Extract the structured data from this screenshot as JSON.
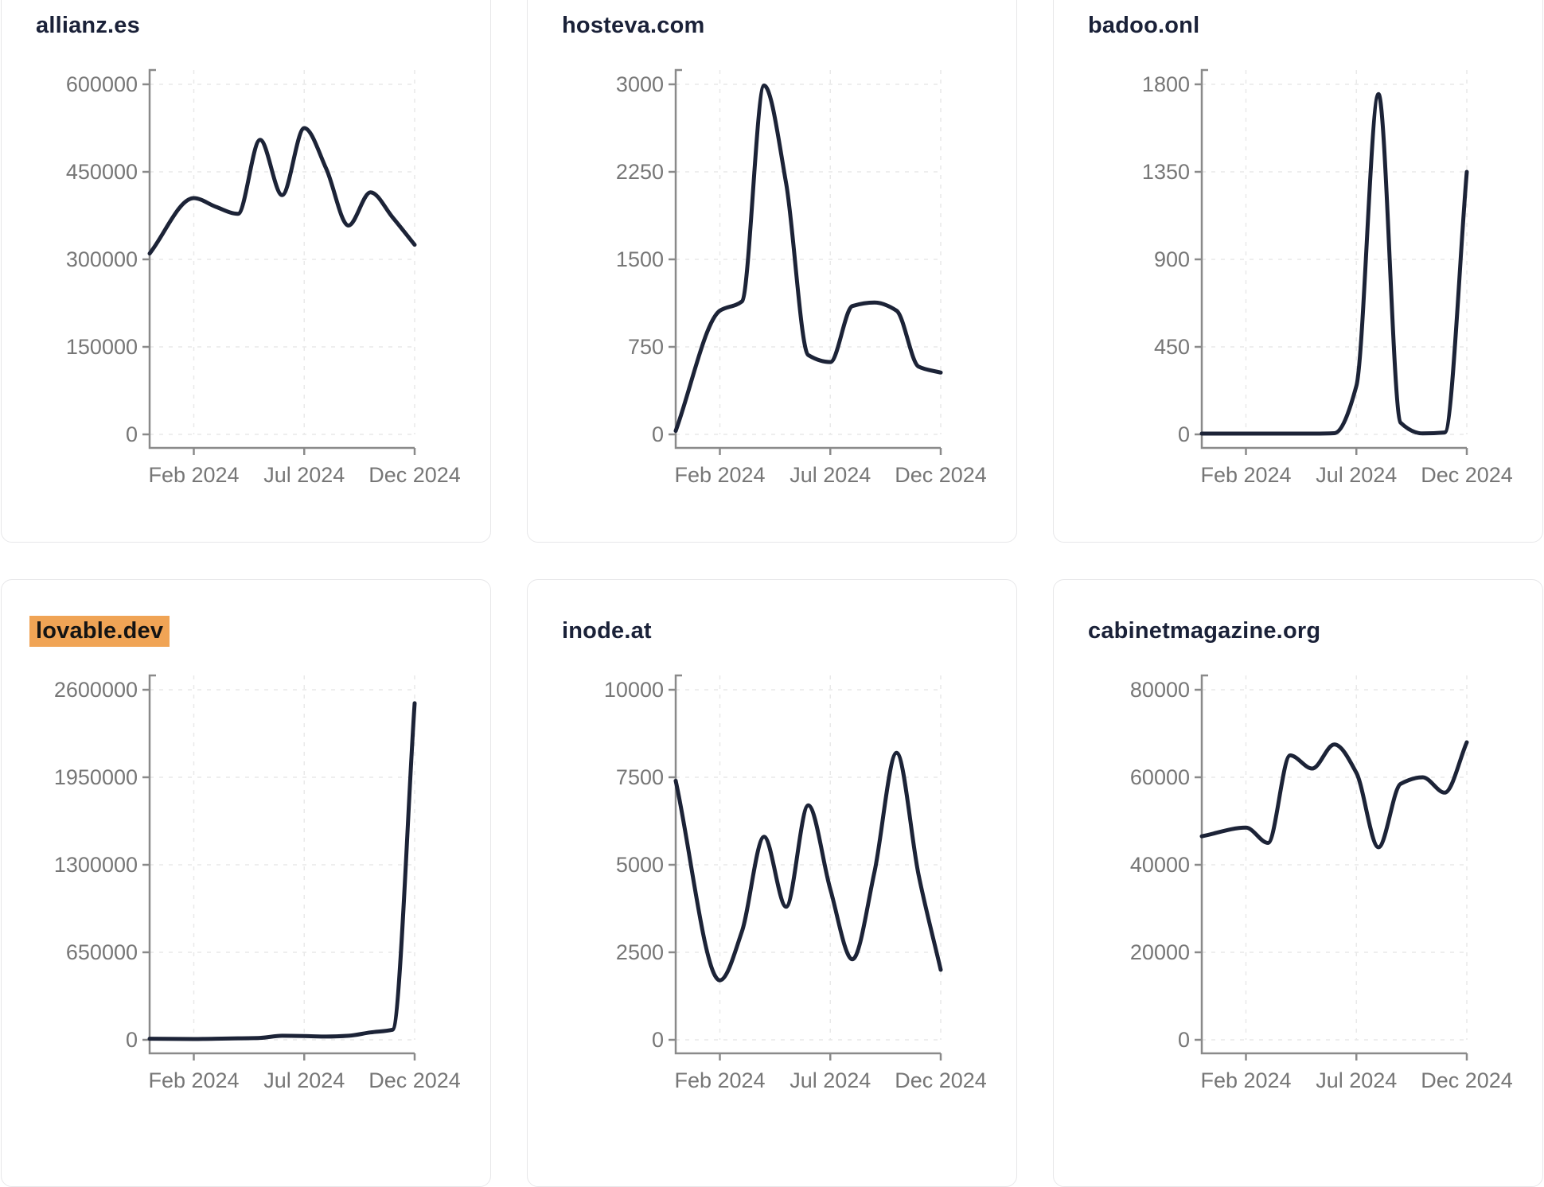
{
  "theme": {
    "background": "#ffffff",
    "card_background": "#ffffff",
    "card_border_color": "#e7e7e9",
    "line_color": "#1c2337",
    "title_color": "#1a2138",
    "tick_label_color": "#767676",
    "axis_color": "#8a8a8a",
    "gridline_color": "#e9e9e9",
    "highlight_color": "#f0a455",
    "highlight_text_color": "#141414"
  },
  "x_axis": {
    "months": [
      "2024-01",
      "2024-02",
      "2024-03",
      "2024-04",
      "2024-05",
      "2024-06",
      "2024-07",
      "2024-08",
      "2024-09",
      "2024-10",
      "2024-11",
      "2024-12"
    ],
    "tick_labels": [
      "Feb 2024",
      "Jul 2024",
      "Dec 2024"
    ],
    "tick_month_indices": [
      1,
      6,
      11
    ]
  },
  "chart_data": [
    {
      "type": "line",
      "title": "allianz.es",
      "highlighted": false,
      "ylim": [
        0,
        600000
      ],
      "y_ticks": [
        600000,
        450000,
        300000,
        150000,
        0
      ],
      "x_tick_labels": [
        "Feb 2024",
        "Jul 2024",
        "Dec 2024"
      ],
      "values": [
        310000,
        405000,
        390000,
        378000,
        505000,
        410000,
        525000,
        455000,
        358000,
        415000,
        372000,
        325000
      ],
      "grid": true
    },
    {
      "type": "line",
      "title": "hosteva.com",
      "highlighted": false,
      "ylim": [
        0,
        3000
      ],
      "y_ticks": [
        3000,
        2250,
        1500,
        750,
        0
      ],
      "x_tick_labels": [
        "Feb 2024",
        "Jul 2024",
        "Dec 2024"
      ],
      "values": [
        30,
        1060,
        1140,
        2990,
        2150,
        680,
        620,
        1100,
        1130,
        1060,
        580,
        530
      ],
      "grid": true
    },
    {
      "type": "line",
      "title": "badoo.onl",
      "highlighted": false,
      "ylim": [
        0,
        1800
      ],
      "y_ticks": [
        1800,
        1350,
        900,
        450,
        0
      ],
      "x_tick_labels": [
        "Feb 2024",
        "Jul 2024",
        "Dec 2024"
      ],
      "values": [
        4,
        4,
        4,
        4,
        4,
        6,
        250,
        1750,
        60,
        5,
        10,
        1350
      ],
      "grid": true
    },
    {
      "type": "line",
      "title": "lovable.dev",
      "highlighted": true,
      "ylim": [
        0,
        2600000
      ],
      "y_ticks": [
        2600000,
        1950000,
        1300000,
        650000,
        0
      ],
      "x_tick_labels": [
        "Feb 2024",
        "Jul 2024",
        "Dec 2024"
      ],
      "values": [
        8000,
        6000,
        8000,
        11000,
        14000,
        30000,
        28000,
        24000,
        30000,
        55000,
        75000,
        2500000
      ],
      "grid": true
    },
    {
      "type": "line",
      "title": "inode.at",
      "highlighted": false,
      "ylim": [
        0,
        10000
      ],
      "y_ticks": [
        10000,
        7500,
        5000,
        2500,
        0
      ],
      "x_tick_labels": [
        "Feb 2024",
        "Jul 2024",
        "Dec 2024"
      ],
      "values": [
        7400,
        1700,
        3100,
        5800,
        3800,
        6700,
        4300,
        2300,
        4800,
        8200,
        4700,
        2000
      ],
      "grid": true
    },
    {
      "type": "line",
      "title": "cabinetmagazine.org",
      "highlighted": false,
      "ylim": [
        0,
        80000
      ],
      "y_ticks": [
        80000,
        60000,
        40000,
        20000,
        0
      ],
      "x_tick_labels": [
        "Feb 2024",
        "Jul 2024",
        "Dec 2024"
      ],
      "values": [
        46500,
        48500,
        45000,
        65000,
        62000,
        67500,
        61000,
        44000,
        58500,
        60000,
        56500,
        68000
      ],
      "grid": true
    }
  ]
}
